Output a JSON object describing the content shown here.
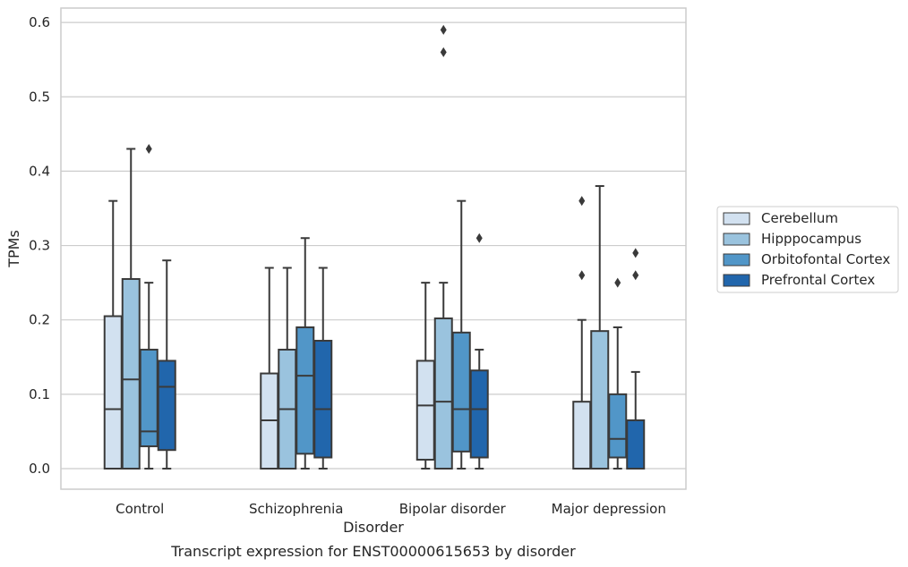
{
  "chart_data": {
    "type": "box",
    "caption": "Transcript expression for ENST00000615653 by disorder",
    "xlabel": "Disorder",
    "ylabel": "TPMs",
    "ylim": [
      -0.028,
      0.62
    ],
    "yticks": [
      0.0,
      0.1,
      0.2,
      0.3,
      0.4,
      0.5,
      0.6
    ],
    "ytick_labels": [
      "0.0",
      "0.1",
      "0.2",
      "0.3",
      "0.4",
      "0.5",
      "0.6"
    ],
    "grid": "horizontal",
    "legend_position": "right",
    "categories": [
      "Control",
      "Schizophrenia",
      "Bipolar disorder",
      "Major depression"
    ],
    "series": [
      {
        "name": "Cerebellum",
        "color": "#d2e1f0",
        "boxes": [
          {
            "whislo": 0.0,
            "q1": 0.0,
            "med": 0.08,
            "q3": 0.205,
            "whishi": 0.36,
            "fliers": []
          },
          {
            "whislo": 0.0,
            "q1": 0.0,
            "med": 0.065,
            "q3": 0.128,
            "whishi": 0.27,
            "fliers": []
          },
          {
            "whislo": 0.0,
            "q1": 0.012,
            "med": 0.085,
            "q3": 0.145,
            "whishi": 0.25,
            "fliers": []
          },
          {
            "whislo": 0.0,
            "q1": 0.0,
            "med": 0.0,
            "q3": 0.09,
            "whishi": 0.2,
            "fliers": [
              0.26,
              0.36
            ]
          }
        ]
      },
      {
        "name": "Hipppocampus",
        "color": "#9ac3de",
        "boxes": [
          {
            "whislo": 0.0,
            "q1": 0.0,
            "med": 0.12,
            "q3": 0.255,
            "whishi": 0.43,
            "fliers": []
          },
          {
            "whislo": 0.0,
            "q1": 0.0,
            "med": 0.08,
            "q3": 0.16,
            "whishi": 0.27,
            "fliers": []
          },
          {
            "whislo": 0.0,
            "q1": 0.0,
            "med": 0.09,
            "q3": 0.202,
            "whishi": 0.25,
            "fliers": [
              0.56,
              0.59
            ]
          },
          {
            "whislo": 0.0,
            "q1": 0.0,
            "med": 0.0,
            "q3": 0.185,
            "whishi": 0.38,
            "fliers": []
          }
        ]
      },
      {
        "name": "Orbitofontal Cortex",
        "color": "#5196c8",
        "boxes": [
          {
            "whislo": 0.0,
            "q1": 0.03,
            "med": 0.05,
            "q3": 0.16,
            "whishi": 0.25,
            "fliers": [
              0.43
            ]
          },
          {
            "whislo": 0.0,
            "q1": 0.02,
            "med": 0.125,
            "q3": 0.19,
            "whishi": 0.31,
            "fliers": []
          },
          {
            "whislo": 0.0,
            "q1": 0.023,
            "med": 0.08,
            "q3": 0.183,
            "whishi": 0.36,
            "fliers": []
          },
          {
            "whislo": 0.0,
            "q1": 0.015,
            "med": 0.04,
            "q3": 0.1,
            "whishi": 0.19,
            "fliers": [
              0.25
            ]
          }
        ]
      },
      {
        "name": "Prefrontal Cortex",
        "color": "#2166ac",
        "boxes": [
          {
            "whislo": 0.0,
            "q1": 0.025,
            "med": 0.11,
            "q3": 0.145,
            "whishi": 0.28,
            "fliers": []
          },
          {
            "whislo": 0.0,
            "q1": 0.015,
            "med": 0.08,
            "q3": 0.172,
            "whishi": 0.27,
            "fliers": []
          },
          {
            "whislo": 0.0,
            "q1": 0.015,
            "med": 0.08,
            "q3": 0.132,
            "whishi": 0.16,
            "fliers": [
              0.31
            ]
          },
          {
            "whislo": 0.0,
            "q1": 0.0,
            "med": 0.0,
            "q3": 0.065,
            "whishi": 0.13,
            "fliers": [
              0.26,
              0.29
            ]
          }
        ]
      }
    ],
    "line_color": "#3a3a3a",
    "grid_color": "#cccccc",
    "frame_color": "#cccccc"
  }
}
